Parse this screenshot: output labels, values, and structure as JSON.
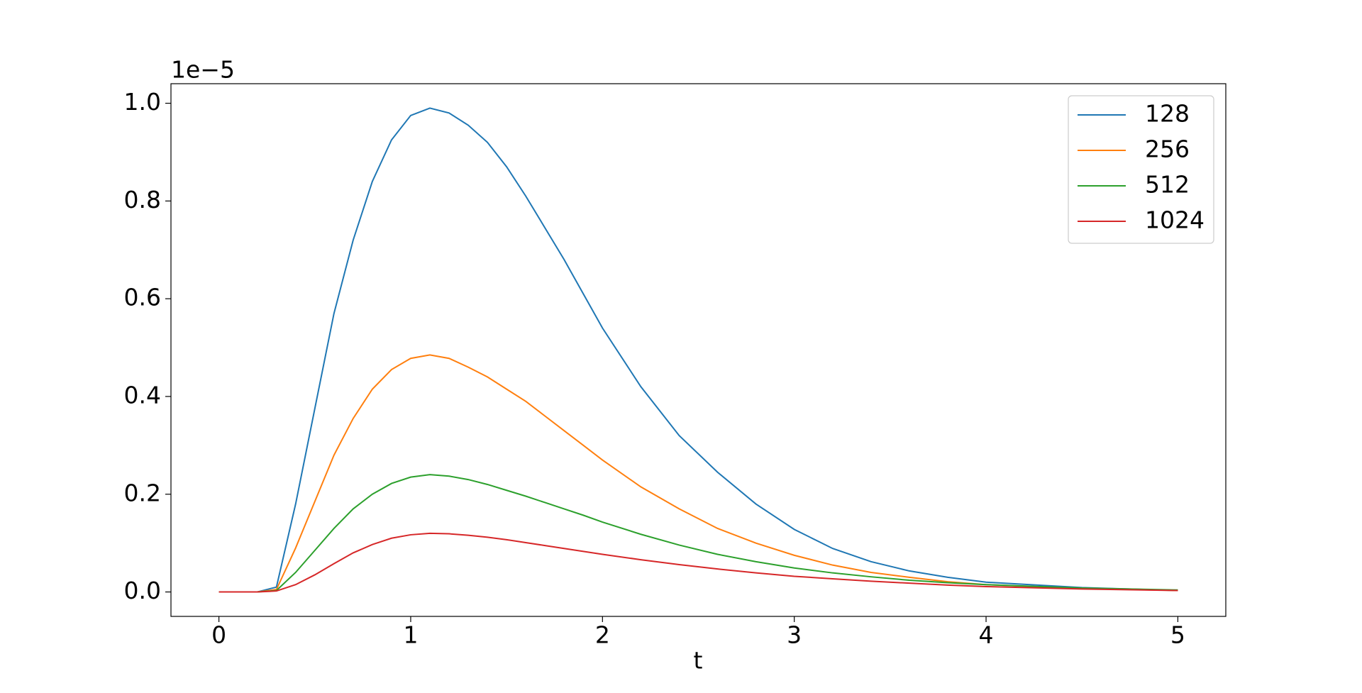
{
  "chart_data": {
    "type": "line",
    "xlabel": "t",
    "y_offset_label": "1e−5",
    "x": [
      0,
      0.1,
      0.2,
      0.3,
      0.4,
      0.5,
      0.6,
      0.7,
      0.8,
      0.9,
      1.0,
      1.1,
      1.2,
      1.3,
      1.4,
      1.5,
      1.6,
      1.7,
      1.8,
      1.9,
      2.0,
      2.2,
      2.4,
      2.6,
      2.8,
      3.0,
      3.2,
      3.4,
      3.6,
      3.8,
      4.0,
      4.5,
      5.0
    ],
    "series": [
      {
        "name": "128",
        "color": "#1f77b4",
        "values": [
          0,
          0,
          0,
          0.01,
          0.18,
          0.375,
          0.57,
          0.72,
          0.84,
          0.925,
          0.975,
          0.99,
          0.98,
          0.955,
          0.92,
          0.87,
          0.81,
          0.745,
          0.68,
          0.61,
          0.54,
          0.42,
          0.32,
          0.245,
          0.18,
          0.128,
          0.089,
          0.062,
          0.043,
          0.03,
          0.02,
          0.009,
          0.003
        ]
      },
      {
        "name": "256",
        "color": "#ff7f0e",
        "values": [
          0,
          0,
          0,
          0.005,
          0.09,
          0.185,
          0.28,
          0.355,
          0.415,
          0.455,
          0.478,
          0.485,
          0.478,
          0.46,
          0.44,
          0.415,
          0.39,
          0.36,
          0.33,
          0.3,
          0.27,
          0.215,
          0.17,
          0.13,
          0.1,
          0.075,
          0.055,
          0.04,
          0.03,
          0.021,
          0.015,
          0.007,
          0.003
        ]
      },
      {
        "name": "512",
        "color": "#2ca02c",
        "values": [
          0,
          0,
          0,
          0.003,
          0.04,
          0.085,
          0.13,
          0.17,
          0.2,
          0.222,
          0.235,
          0.24,
          0.237,
          0.23,
          0.22,
          0.208,
          0.196,
          0.183,
          0.17,
          0.157,
          0.143,
          0.118,
          0.096,
          0.077,
          0.062,
          0.049,
          0.039,
          0.031,
          0.024,
          0.019,
          0.015,
          0.008,
          0.004
        ]
      },
      {
        "name": "1024",
        "color": "#d62728",
        "values": [
          0,
          0,
          0,
          0.002,
          0.015,
          0.035,
          0.058,
          0.08,
          0.097,
          0.11,
          0.117,
          0.12,
          0.119,
          0.116,
          0.112,
          0.107,
          0.101,
          0.095,
          0.089,
          0.083,
          0.077,
          0.066,
          0.056,
          0.047,
          0.039,
          0.032,
          0.027,
          0.022,
          0.018,
          0.014,
          0.011,
          0.006,
          0.003
        ]
      }
    ],
    "xlim": [
      -0.25,
      5.25
    ],
    "xticks": [
      0,
      1,
      2,
      3,
      4,
      5
    ],
    "ylim": [
      -0.05,
      1.04
    ],
    "yticks": [
      {
        "value": 0,
        "label": "0.0"
      },
      0.2,
      0.4,
      0.6,
      0.8,
      {
        "value": 1,
        "label": "1.0"
      }
    ],
    "grid": false,
    "legend": "upper right"
  }
}
